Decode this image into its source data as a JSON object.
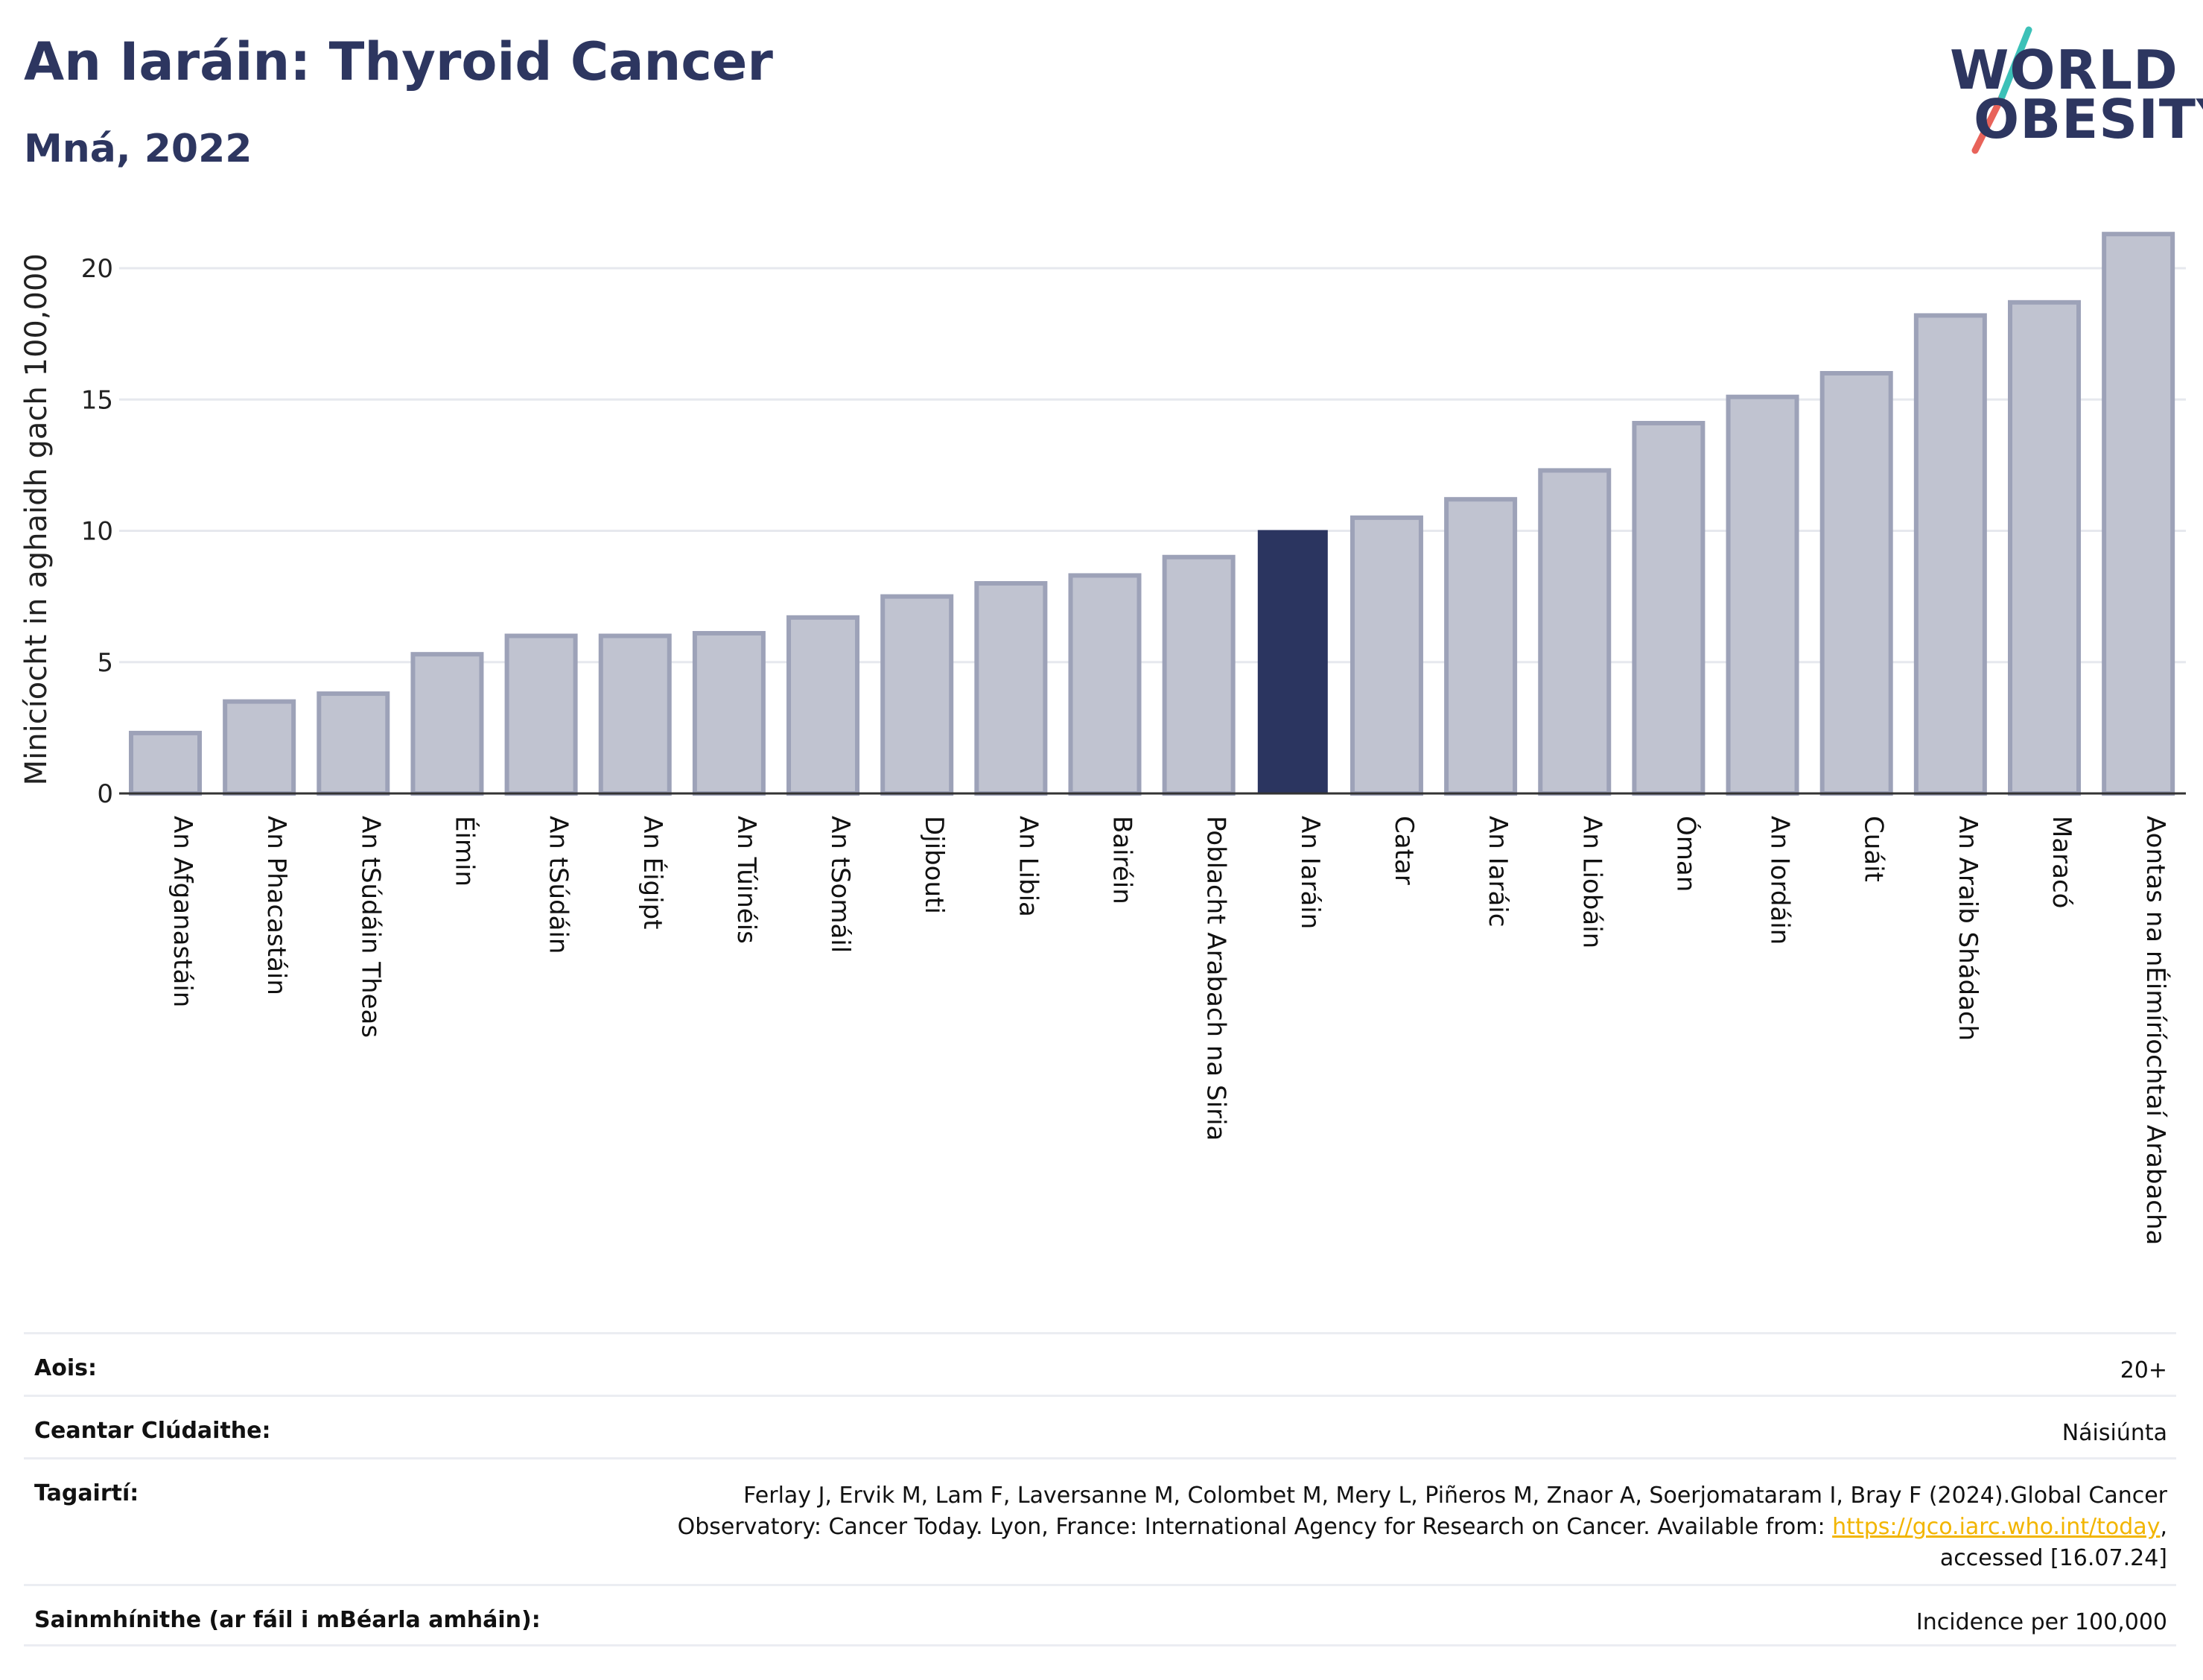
{
  "header": {
    "title": "An Iaráin: Thyroid Cancer",
    "subtitle": "Mná, 2022"
  },
  "logo": {
    "line1": "WORLD",
    "line2": "OBESITY",
    "slash_colors": [
      "#3cc1b8",
      "#e8635a"
    ]
  },
  "colors": {
    "highlight_bar": "#2b3560",
    "other_bar": "#c0c3d0",
    "other_bar_border": "#9da2b8",
    "link": "#f2b500"
  },
  "chart_data": {
    "type": "bar",
    "title": "An Iaráin: Thyroid Cancer",
    "subtitle": "Mná, 2022",
    "xlabel": "",
    "ylabel": "Minicíocht in aghaidh gach 100,000",
    "ylim": [
      0,
      22
    ],
    "yticks": [
      0,
      5,
      10,
      15,
      20
    ],
    "grid": true,
    "highlight": "An Iaráin",
    "categories": [
      "An Afganastáin",
      "An Phacastáin",
      "An tSúdáin Theas",
      "Éimin",
      "An tSúdáin",
      "An Éigipt",
      "An Túinéis",
      "An tSomáil",
      "Djibouti",
      "An Libia",
      "Bairéin",
      "Poblacht Arabach na Siria",
      "An Iaráin",
      "Catar",
      "An Iaráic",
      "An Liobáin",
      "Óman",
      "An Iordáin",
      "Cuáit",
      "An Araib Shádach",
      "Maracó",
      "Aontas na nÉimíríochtaí Arabacha"
    ],
    "values": [
      2.3,
      3.5,
      3.8,
      5.3,
      6.0,
      6.0,
      6.1,
      6.7,
      7.5,
      8.0,
      8.3,
      9.0,
      10.0,
      10.5,
      11.2,
      12.3,
      14.1,
      15.1,
      16.0,
      18.2,
      18.7,
      21.3
    ]
  },
  "info": {
    "rows": [
      {
        "label": "Aois:",
        "value": "20+"
      },
      {
        "label": "Ceantar Clúdaithe:",
        "value": "Náisiúnta"
      },
      {
        "label": "Tagairtí:",
        "value_line1": "Ferlay J, Ervik M, Lam F, Laversanne M, Colombet M, Mery L, Piñeros M, Znaor A, Soerjomataram I, Bray F (2024).Global Cancer",
        "value_line2": "Observatory: Cancer Today. Lyon, France: International Agency for Research on Cancer. Available from:",
        "link": "https://gco.iarc.who.int/today",
        "value_tail": ",",
        "value_line3": "accessed [16.07.24]"
      },
      {
        "label": "Sainmhínithe (ar fáil i mBéarla amháin):",
        "value": "Incidence per 100,000"
      }
    ]
  }
}
